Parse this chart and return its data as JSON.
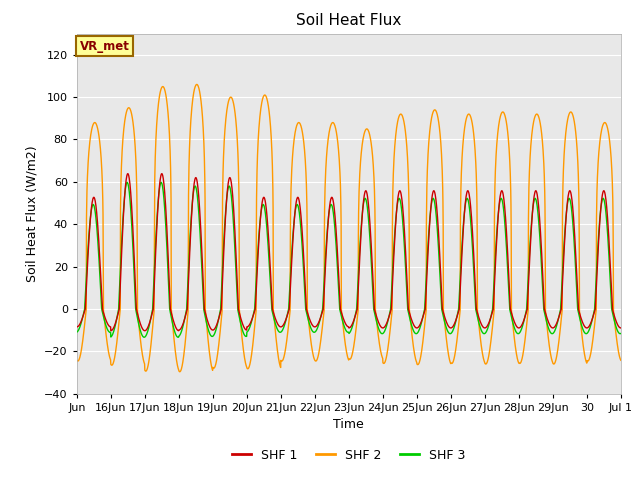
{
  "title": "Soil Heat Flux",
  "ylabel": "Soil Heat Flux (W/m2)",
  "xlabel": "Time",
  "ylim": [
    -40,
    130
  ],
  "yticks": [
    -40,
    -20,
    0,
    20,
    40,
    60,
    80,
    100,
    120
  ],
  "bg_color": "#e8e8e8",
  "fig_color": "#ffffff",
  "shf1_color": "#cc0000",
  "shf2_color": "#ff9900",
  "shf3_color": "#00cc00",
  "legend_labels": [
    "SHF 1",
    "SHF 2",
    "SHF 3"
  ],
  "box_label": "VR_met",
  "box_facecolor": "#ffff99",
  "box_edgecolor": "#996600",
  "xtick_labels": [
    "Jun",
    "16Jun",
    "17Jun",
    "18Jun",
    "19Jun",
    "20Jun",
    "21Jun",
    "22Jun",
    "23Jun",
    "24Jun",
    "25Jun",
    "26Jun",
    "27Jun",
    "28Jun",
    "29Jun",
    "30",
    "Jul 1"
  ],
  "n_days": 16,
  "pts_per_day": 144,
  "shf1_amp": 62,
  "shf1_trough": -10,
  "shf2_amp_peak": 100,
  "shf2_trough": -28,
  "shf3_amp": 58,
  "shf3_trough": -13,
  "shf2_sharpness": 4.5,
  "shf1_phase": 0.0,
  "shf2_phase": -0.18,
  "shf3_phase": 0.12
}
